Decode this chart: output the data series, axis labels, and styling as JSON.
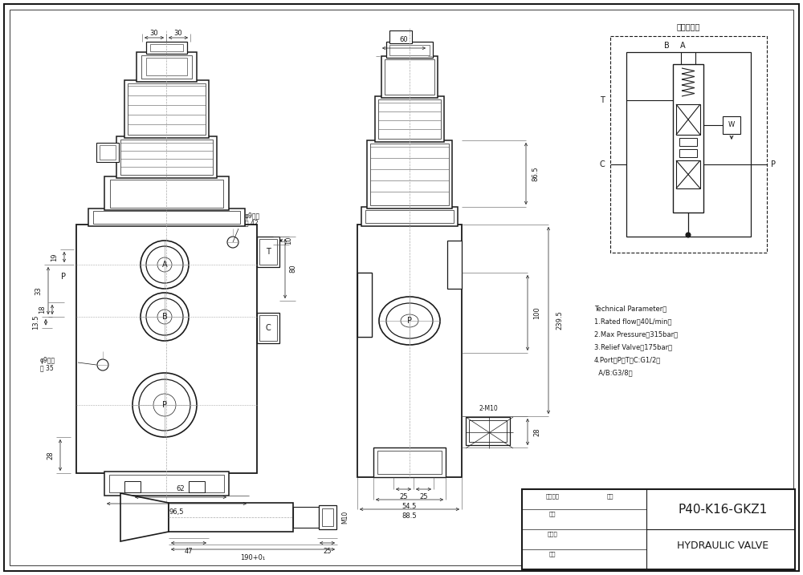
{
  "bg_color": "#ffffff",
  "line_color": "#1a1a1a",
  "title": "P40-K16-GKZ1",
  "subtitle": "HYDRAULIC VALVE",
  "tech_params": [
    "Technical Parameter：",
    "1.Rated flow：40L/min；",
    "2.Max Pressure：315bar；",
    "3.Relief Valve：175bar；",
    "4.Port：P、T、C:G1/2；",
    "  A/B:G3/8；"
  ],
  "hydraulic_title": "液压原理图"
}
